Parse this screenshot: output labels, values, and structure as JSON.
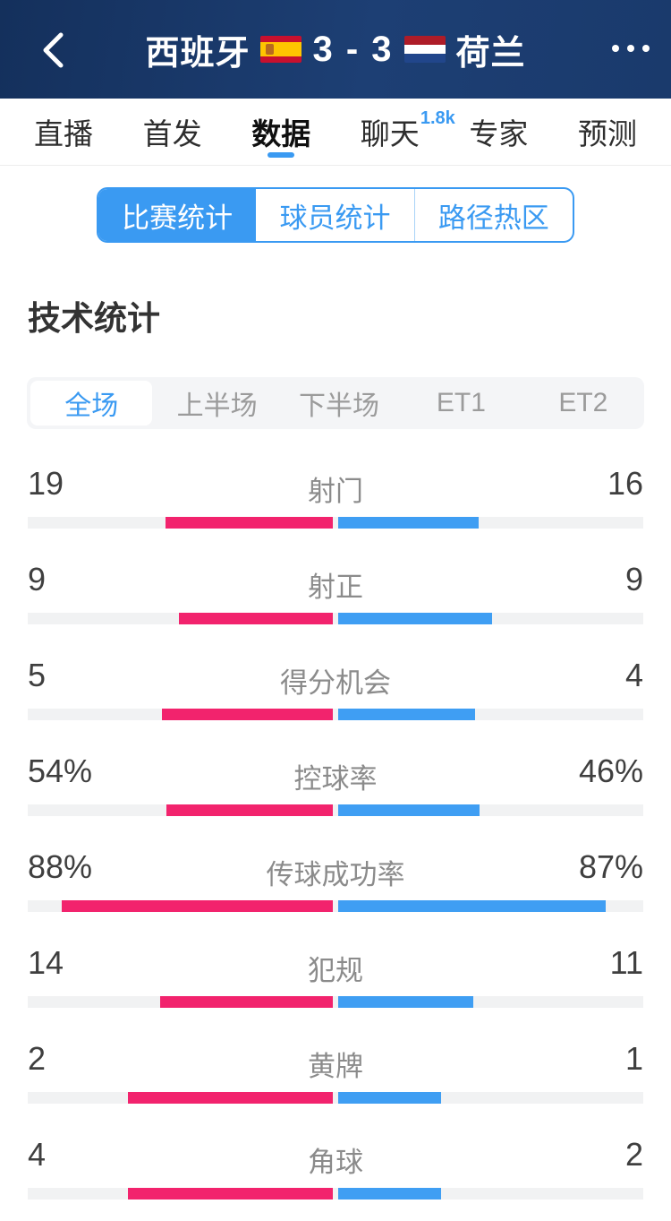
{
  "header": {
    "team_home": "西班牙",
    "score": "3 - 3",
    "team_away": "荷兰",
    "home_flag_icon": "spain-flag",
    "away_flag_icon": "netherlands-flag"
  },
  "nav": {
    "tabs": [
      {
        "label": "直播",
        "active": false
      },
      {
        "label": "首发",
        "active": false
      },
      {
        "label": "数据",
        "active": true
      },
      {
        "label": "聊天",
        "active": false,
        "badge": "1.8k"
      },
      {
        "label": "专家",
        "active": false
      },
      {
        "label": "预测",
        "active": false
      }
    ]
  },
  "subtabs": [
    {
      "label": "比赛统计",
      "active": true
    },
    {
      "label": "球员统计",
      "active": false
    },
    {
      "label": "路径热区",
      "active": false
    }
  ],
  "section_title": "技术统计",
  "periods": [
    {
      "label": "全场",
      "active": true
    },
    {
      "label": "上半场",
      "active": false
    },
    {
      "label": "下半场",
      "active": false
    },
    {
      "label": "ET1",
      "active": false
    },
    {
      "label": "ET2",
      "active": false
    }
  ],
  "chart_data": {
    "type": "bar",
    "title": "技术统计 (全场)",
    "legend": [
      "西班牙",
      "荷兰"
    ],
    "categories": [
      "射门",
      "射正",
      "得分机会",
      "控球率",
      "传球成功率",
      "犯规",
      "黄牌",
      "角球"
    ],
    "series": [
      {
        "name": "西班牙",
        "values": [
          19,
          9,
          5,
          54,
          88,
          14,
          2,
          4
        ]
      },
      {
        "name": "荷兰",
        "values": [
          16,
          9,
          4,
          46,
          87,
          11,
          1,
          2
        ]
      }
    ]
  },
  "stats": [
    {
      "label": "射门",
      "home": "19",
      "away": "16",
      "home_value": 19,
      "away_value": 16,
      "mode": "share"
    },
    {
      "label": "射正",
      "home": "9",
      "away": "9",
      "home_value": 9,
      "away_value": 9,
      "mode": "share"
    },
    {
      "label": "得分机会",
      "home": "5",
      "away": "4",
      "home_value": 5,
      "away_value": 4,
      "mode": "share"
    },
    {
      "label": "控球率",
      "home": "54%",
      "away": "46%",
      "home_value": 54,
      "away_value": 46,
      "mode": "percent"
    },
    {
      "label": "传球成功率",
      "home": "88%",
      "away": "87%",
      "home_value": 88,
      "away_value": 87,
      "mode": "percent"
    },
    {
      "label": "犯规",
      "home": "14",
      "away": "11",
      "home_value": 14,
      "away_value": 11,
      "mode": "share"
    },
    {
      "label": "黄牌",
      "home": "2",
      "away": "1",
      "home_value": 2,
      "away_value": 1,
      "mode": "share"
    },
    {
      "label": "角球",
      "home": "4",
      "away": "2",
      "home_value": 4,
      "away_value": 2,
      "mode": "share"
    }
  ],
  "colors": {
    "accent": "#3a9af2",
    "home_bar": "#f2236d",
    "away_bar": "#3f9ef3",
    "header_bg": "#1b3c70",
    "bar_track": "#f1f2f3"
  }
}
